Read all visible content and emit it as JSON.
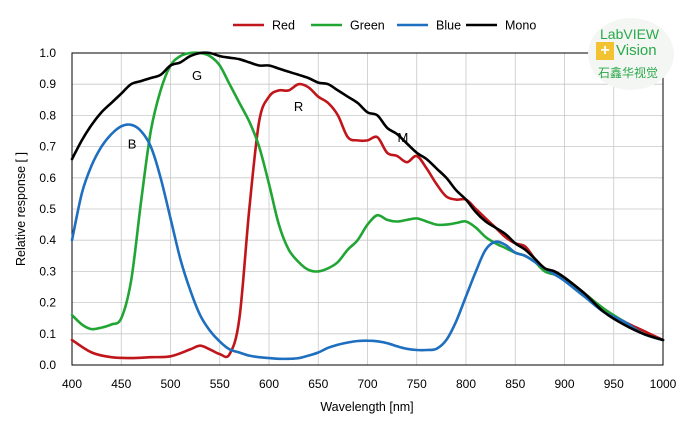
{
  "chart_data": {
    "type": "line",
    "xlabel": "Wavelength [nm]",
    "ylabel": "Relative response [ ]",
    "xlim": [
      400,
      1000
    ],
    "ylim": [
      0.0,
      1.0
    ],
    "xticks": [
      "400",
      "450",
      "500",
      "550",
      "600",
      "650",
      "700",
      "750",
      "800",
      "850",
      "900",
      "950",
      "1000"
    ],
    "yticks": [
      "0.0",
      "0.1",
      "0.2",
      "0.3",
      "0.4",
      "0.5",
      "0.6",
      "0.7",
      "0.8",
      "0.9",
      "1.0"
    ],
    "legend": [
      "Red",
      "Green",
      "Blue",
      "Mono"
    ],
    "legend_position": "top",
    "grid": true,
    "series": [
      {
        "name": "Red",
        "color": "#c0151a",
        "x": [
          400,
          420,
          440,
          460,
          480,
          500,
          520,
          530,
          540,
          550,
          560,
          570,
          580,
          590,
          600,
          610,
          620,
          630,
          640,
          650,
          660,
          670,
          680,
          690,
          700,
          710,
          720,
          730,
          740,
          750,
          760,
          770,
          780,
          790,
          800,
          810,
          820,
          830,
          840,
          850,
          860,
          870,
          880,
          890,
          900,
          920,
          940,
          960,
          980,
          1000
        ],
        "y": [
          0.08,
          0.04,
          0.025,
          0.022,
          0.025,
          0.028,
          0.05,
          0.062,
          0.05,
          0.035,
          0.035,
          0.15,
          0.5,
          0.78,
          0.86,
          0.88,
          0.88,
          0.9,
          0.89,
          0.86,
          0.84,
          0.8,
          0.73,
          0.72,
          0.72,
          0.73,
          0.68,
          0.67,
          0.65,
          0.67,
          0.63,
          0.58,
          0.54,
          0.53,
          0.53,
          0.5,
          0.47,
          0.44,
          0.41,
          0.39,
          0.38,
          0.34,
          0.31,
          0.3,
          0.28,
          0.23,
          0.18,
          0.14,
          0.11,
          0.08
        ]
      },
      {
        "name": "Green",
        "color": "#21a535",
        "x": [
          400,
          410,
          420,
          430,
          440,
          450,
          460,
          470,
          480,
          490,
          500,
          510,
          520,
          530,
          540,
          550,
          560,
          570,
          580,
          590,
          600,
          610,
          620,
          630,
          640,
          650,
          660,
          670,
          680,
          690,
          700,
          710,
          720,
          730,
          740,
          750,
          760,
          770,
          780,
          790,
          800,
          810,
          820,
          830,
          840,
          850,
          860,
          870,
          880,
          890,
          900,
          920,
          940,
          960,
          980,
          1000
        ],
        "y": [
          0.16,
          0.13,
          0.115,
          0.12,
          0.13,
          0.15,
          0.27,
          0.52,
          0.75,
          0.88,
          0.96,
          0.99,
          1.0,
          1.0,
          0.99,
          0.96,
          0.9,
          0.84,
          0.78,
          0.7,
          0.58,
          0.45,
          0.37,
          0.33,
          0.305,
          0.3,
          0.31,
          0.33,
          0.37,
          0.4,
          0.45,
          0.48,
          0.465,
          0.46,
          0.465,
          0.47,
          0.46,
          0.45,
          0.45,
          0.455,
          0.46,
          0.44,
          0.41,
          0.39,
          0.375,
          0.36,
          0.35,
          0.33,
          0.3,
          0.29,
          0.28,
          0.23,
          0.18,
          0.14,
          0.1,
          0.08
        ]
      },
      {
        "name": "Blue",
        "color": "#1e6fbf",
        "x": [
          400,
          410,
          420,
          430,
          440,
          450,
          460,
          470,
          480,
          490,
          500,
          510,
          520,
          530,
          540,
          550,
          560,
          570,
          580,
          590,
          600,
          610,
          620,
          630,
          640,
          650,
          660,
          670,
          680,
          690,
          700,
          710,
          720,
          730,
          740,
          750,
          760,
          770,
          780,
          790,
          800,
          810,
          820,
          830,
          840,
          850,
          860,
          870,
          880,
          890,
          900,
          920,
          940,
          960,
          980,
          1000
        ],
        "y": [
          0.4,
          0.55,
          0.64,
          0.7,
          0.74,
          0.765,
          0.77,
          0.75,
          0.7,
          0.6,
          0.47,
          0.34,
          0.24,
          0.16,
          0.11,
          0.075,
          0.05,
          0.04,
          0.03,
          0.025,
          0.022,
          0.02,
          0.02,
          0.022,
          0.03,
          0.04,
          0.055,
          0.065,
          0.072,
          0.077,
          0.078,
          0.076,
          0.07,
          0.06,
          0.052,
          0.048,
          0.048,
          0.052,
          0.08,
          0.14,
          0.22,
          0.3,
          0.37,
          0.395,
          0.385,
          0.36,
          0.35,
          0.33,
          0.31,
          0.29,
          0.27,
          0.22,
          0.17,
          0.14,
          0.1,
          0.08
        ]
      },
      {
        "name": "Mono",
        "color": "#000000",
        "x": [
          400,
          410,
          420,
          430,
          440,
          450,
          460,
          470,
          480,
          490,
          500,
          510,
          520,
          530,
          540,
          550,
          560,
          570,
          580,
          590,
          600,
          610,
          620,
          630,
          640,
          650,
          660,
          670,
          680,
          690,
          700,
          710,
          720,
          730,
          740,
          750,
          760,
          770,
          780,
          790,
          800,
          810,
          820,
          830,
          840,
          850,
          860,
          870,
          880,
          890,
          900,
          920,
          940,
          960,
          980,
          1000
        ],
        "y": [
          0.66,
          0.72,
          0.77,
          0.81,
          0.84,
          0.87,
          0.9,
          0.91,
          0.92,
          0.93,
          0.96,
          0.97,
          0.99,
          1.0,
          1.0,
          0.99,
          0.985,
          0.98,
          0.97,
          0.96,
          0.96,
          0.95,
          0.94,
          0.93,
          0.92,
          0.905,
          0.9,
          0.88,
          0.86,
          0.84,
          0.81,
          0.8,
          0.76,
          0.74,
          0.71,
          0.68,
          0.66,
          0.63,
          0.6,
          0.56,
          0.53,
          0.49,
          0.46,
          0.44,
          0.42,
          0.39,
          0.37,
          0.34,
          0.31,
          0.3,
          0.28,
          0.23,
          0.17,
          0.13,
          0.1,
          0.08
        ]
      }
    ],
    "annotations": [
      {
        "text": "B",
        "x": 461,
        "y": 0.71
      },
      {
        "text": "G",
        "x": 527,
        "y": 0.93
      },
      {
        "text": "R",
        "x": 630,
        "y": 0.83
      },
      {
        "text": "M",
        "x": 736,
        "y": 0.73
      }
    ]
  },
  "logo": {
    "line1": "LabVIEW",
    "plus": "+",
    "line2": "Vision",
    "line3": "石鑫华视觉"
  }
}
